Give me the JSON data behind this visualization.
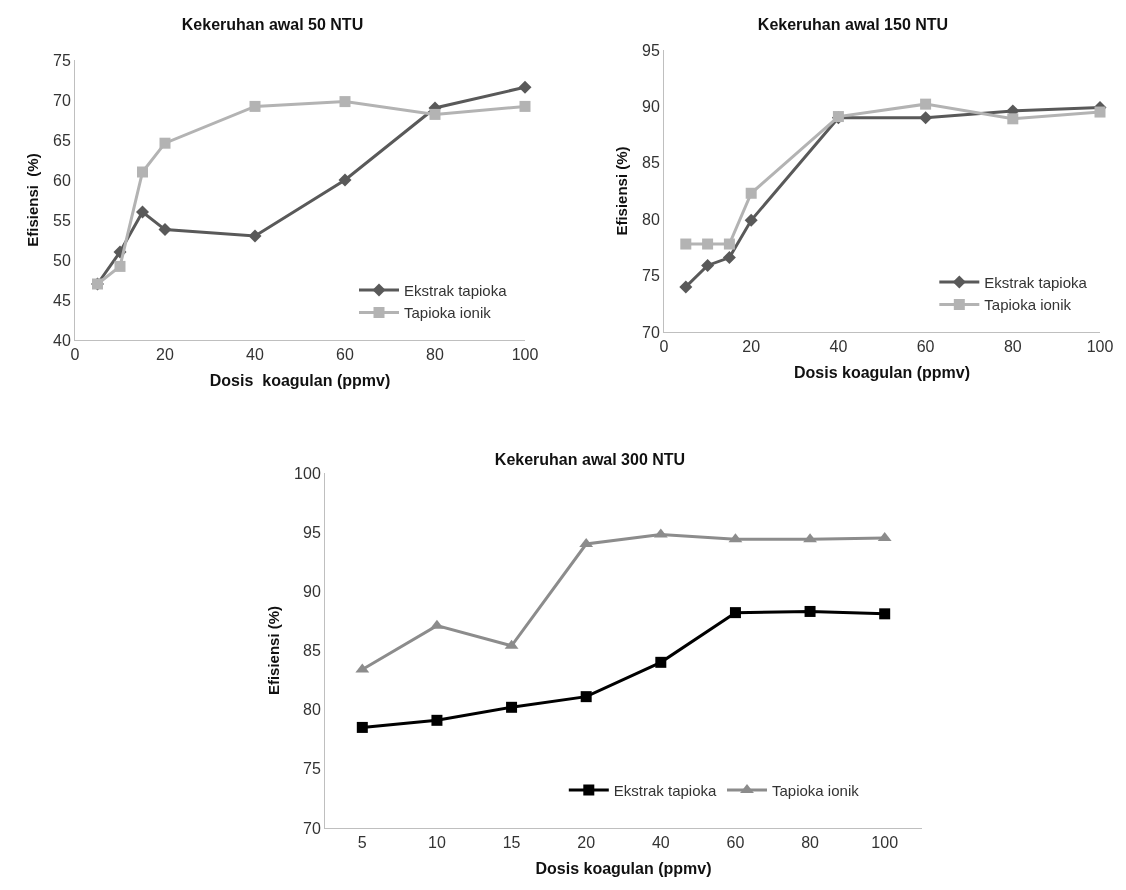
{
  "chart_data": [
    {
      "type": "line",
      "title": "Kekeruhan awal 50 NTU",
      "xlabel": "Dosis  koagulan (ppmv)",
      "ylabel": "Efisiensi  (%)",
      "x": [
        5,
        10,
        15,
        20,
        40,
        60,
        80,
        100
      ],
      "xlim": [
        0,
        100
      ],
      "xticks": [
        0,
        20,
        40,
        60,
        80,
        100
      ],
      "ylim": [
        40,
        75
      ],
      "yticks": [
        40,
        45,
        50,
        55,
        60,
        65,
        70,
        75
      ],
      "grid": false,
      "legend": "bottom right",
      "line_style": "solid",
      "series": [
        {
          "name": "Ekstrak tapioka",
          "color": "#595959",
          "marker": "diamond",
          "values": [
            47,
            51,
            56,
            53.8,
            53,
            60,
            69,
            71.6
          ]
        },
        {
          "name": "Tapioka ionik",
          "color": "#b3b3b3",
          "marker": "square",
          "values": [
            47,
            49.2,
            61,
            64.6,
            69.2,
            69.8,
            68.2,
            69.2
          ]
        }
      ]
    },
    {
      "type": "line",
      "title": "Kekeruhan awal 150 NTU",
      "xlabel": "Dosis koagulan (ppmv)",
      "ylabel": "Efisiensi (%)",
      "x": [
        5,
        10,
        15,
        20,
        40,
        60,
        80,
        100
      ],
      "xlim": [
        0,
        100
      ],
      "xticks": [
        0,
        20,
        40,
        60,
        80,
        100
      ],
      "ylim": [
        70,
        95
      ],
      "yticks": [
        70,
        75,
        80,
        85,
        90,
        95
      ],
      "grid": false,
      "legend": "bottom right",
      "line_style": "solid",
      "series": [
        {
          "name": "Ekstrak tapioka",
          "color": "#595959",
          "marker": "diamond",
          "values": [
            74,
            75.9,
            76.6,
            79.9,
            89,
            89,
            89.6,
            89.9
          ]
        },
        {
          "name": "Tapioka ionik",
          "color": "#b3b3b3",
          "marker": "square",
          "values": [
            77.8,
            77.8,
            77.8,
            82.3,
            89.1,
            90.2,
            88.9,
            89.5
          ]
        }
      ]
    },
    {
      "type": "line",
      "title": "Kekeruhan awal 300 NTU",
      "xlabel": "Dosis koagulan (ppmv)",
      "ylabel": "Efisiensi (%)",
      "categories": [
        "5",
        "10",
        "15",
        "20",
        "40",
        "60",
        "80",
        "100"
      ],
      "ylim": [
        70,
        100
      ],
      "yticks": [
        70,
        75,
        80,
        85,
        90,
        95,
        100
      ],
      "grid": false,
      "legend": "bottom",
      "line_style": "solid",
      "series": [
        {
          "name": "Ekstrak tapioka",
          "color": "#000000",
          "marker": "square",
          "values": [
            78.5,
            79.1,
            80.2,
            81.1,
            84,
            88.2,
            88.3,
            88.1
          ]
        },
        {
          "name": "Tapioka ionik",
          "color": "#8c8c8c",
          "marker": "triangle",
          "values": [
            83.4,
            87.1,
            85.4,
            94,
            94.8,
            94.4,
            94.4,
            94.5
          ]
        }
      ]
    }
  ]
}
